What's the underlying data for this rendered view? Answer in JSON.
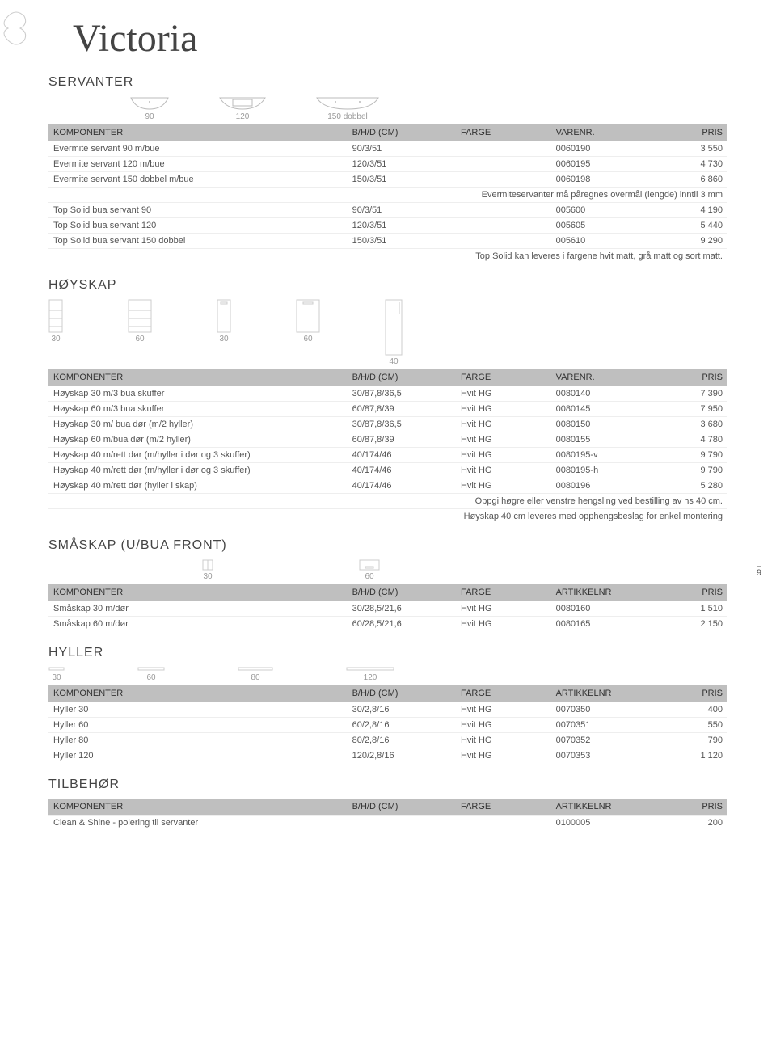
{
  "page_title": "Victoria",
  "side_page": "9",
  "sections": {
    "servanter": {
      "title": "SERVANTER",
      "icons": [
        {
          "label": "90"
        },
        {
          "label": "120"
        },
        {
          "label": "150 dobbel"
        }
      ],
      "headers": [
        "KOMPONENTER",
        "B/H/D (CM)",
        "FARGE",
        "VARENR.",
        "PRIS"
      ],
      "rows": [
        {
          "c1": "Evermite servant 90 m/bue",
          "c2": "90/3/51",
          "c3": "",
          "c4": "0060190",
          "c5": "3 550"
        },
        {
          "c1": "Evermite servant 120 m/bue",
          "c2": "120/3/51",
          "c3": "",
          "c4": "0060195",
          "c5": "4 730"
        },
        {
          "c1": "Evermite servant 150 dobbel m/bue",
          "c2": "150/3/51",
          "c3": "",
          "c4": "0060198",
          "c5": "6 860"
        },
        {
          "note": "Evermiteservanter må påregnes overmål (lengde) inntil 3 mm"
        },
        {
          "c1": "Top Solid bua servant 90",
          "c2": "90/3/51",
          "c3": "",
          "c4": "005600",
          "c5": "4 190"
        },
        {
          "c1": "Top Solid bua servant 120",
          "c2": "120/3/51",
          "c3": "",
          "c4": "005605",
          "c5": "5 440"
        },
        {
          "c1": "Top Solid bua servant 150 dobbel",
          "c2": "150/3/51",
          "c3": "",
          "c4": "005610",
          "c5": "9 290"
        },
        {
          "note": "Top Solid kan leveres i fargene hvit matt, grå matt og sort matt."
        }
      ]
    },
    "hoyskap": {
      "title": "HØYSKAP",
      "icons": [
        {
          "label": "30"
        },
        {
          "label": "60"
        },
        {
          "label": "30"
        },
        {
          "label": "60"
        },
        {
          "label": "40"
        }
      ],
      "headers": [
        "KOMPONENTER",
        "B/H/D (CM)",
        "FARGE",
        "VARENR.",
        "PRIS"
      ],
      "rows": [
        {
          "c1": "Høyskap 30 m/3 bua skuffer",
          "c2": "30/87,8/36,5",
          "c3": "Hvit HG",
          "c4": "0080140",
          "c5": "7 390"
        },
        {
          "c1": "Høyskap 60 m/3 bua skuffer",
          "c2": "60/87,8/39",
          "c3": "Hvit HG",
          "c4": "0080145",
          "c5": "7 950"
        },
        {
          "c1": "Høyskap 30 m/ bua dør (m/2 hyller)",
          "c2": "30/87,8/36,5",
          "c3": "Hvit HG",
          "c4": "0080150",
          "c5": "3 680"
        },
        {
          "c1": "Høyskap 60 m/bua dør (m/2 hyller)",
          "c2": "60/87,8/39",
          "c3": "Hvit HG",
          "c4": "0080155",
          "c5": "4 780"
        },
        {
          "c1": "Høyskap 40 m/rett dør (m/hyller i dør og 3 skuffer)",
          "c2": "40/174/46",
          "c3": "Hvit HG",
          "c4": "0080195-v",
          "c5": "9 790"
        },
        {
          "c1": "Høyskap 40 m/rett dør (m/hyller i dør og 3 skuffer)",
          "c2": "40/174/46",
          "c3": "Hvit HG",
          "c4": "0080195-h",
          "c5": "9 790"
        },
        {
          "c1": "Høyskap 40 m/rett dør (hyller i skap)",
          "c2": "40/174/46",
          "c3": "Hvit HG",
          "c4": "0080196",
          "c5": "5 280"
        },
        {
          "note": "Oppgi høgre eller venstre hengsling ved bestilling av hs 40 cm."
        },
        {
          "note": "Høyskap 40 cm leveres med opphengsbeslag for enkel montering"
        }
      ]
    },
    "smaskap": {
      "title": "SMÅSKAP (U/BUA FRONT)",
      "icons": [
        {
          "label": "30"
        },
        {
          "label": "60"
        }
      ],
      "headers": [
        "KOMPONENTER",
        "B/H/D (CM)",
        "FARGE",
        "ARTIKKELNR",
        "PRIS"
      ],
      "rows": [
        {
          "c1": "Småskap 30 m/dør",
          "c2": "30/28,5/21,6",
          "c3": "Hvit HG",
          "c4": "0080160",
          "c5": "1 510"
        },
        {
          "c1": "Småskap 60 m/dør",
          "c2": "60/28,5/21,6",
          "c3": "Hvit HG",
          "c4": "0080165",
          "c5": "2 150"
        }
      ]
    },
    "hyller": {
      "title": "HYLLER",
      "icons": [
        {
          "label": "30"
        },
        {
          "label": "60"
        },
        {
          "label": "80"
        },
        {
          "label": "120"
        }
      ],
      "headers": [
        "KOMPONENTER",
        "B/H/D (CM)",
        "FARGE",
        "ARTIKKELNR",
        "PRIS"
      ],
      "rows": [
        {
          "c1": "Hyller 30",
          "c2": "30/2,8/16",
          "c3": "Hvit HG",
          "c4": "0070350",
          "c5": "400"
        },
        {
          "c1": "Hyller 60",
          "c2": "60/2,8/16",
          "c3": "Hvit HG",
          "c4": "0070351",
          "c5": "550"
        },
        {
          "c1": "Hyller 80",
          "c2": "80/2,8/16",
          "c3": "Hvit HG",
          "c4": "0070352",
          "c5": "790"
        },
        {
          "c1": "Hyller 120",
          "c2": "120/2,8/16",
          "c3": "Hvit HG",
          "c4": "0070353",
          "c5": "1 120"
        }
      ]
    },
    "tilbehor": {
      "title": "TILBEHØR",
      "headers": [
        "KOMPONENTER",
        "B/H/D (CM)",
        "FARGE",
        "ARTIKKELNR",
        "PRIS"
      ],
      "rows": [
        {
          "c1": "Clean & Shine - polering til servanter",
          "c2": "",
          "c3": "",
          "c4": "0100005",
          "c5": "200"
        }
      ]
    }
  },
  "colors": {
    "header_bg": "#bfbfbf",
    "text": "#333333",
    "muted": "#555555",
    "light_border": "#eeeeee"
  }
}
